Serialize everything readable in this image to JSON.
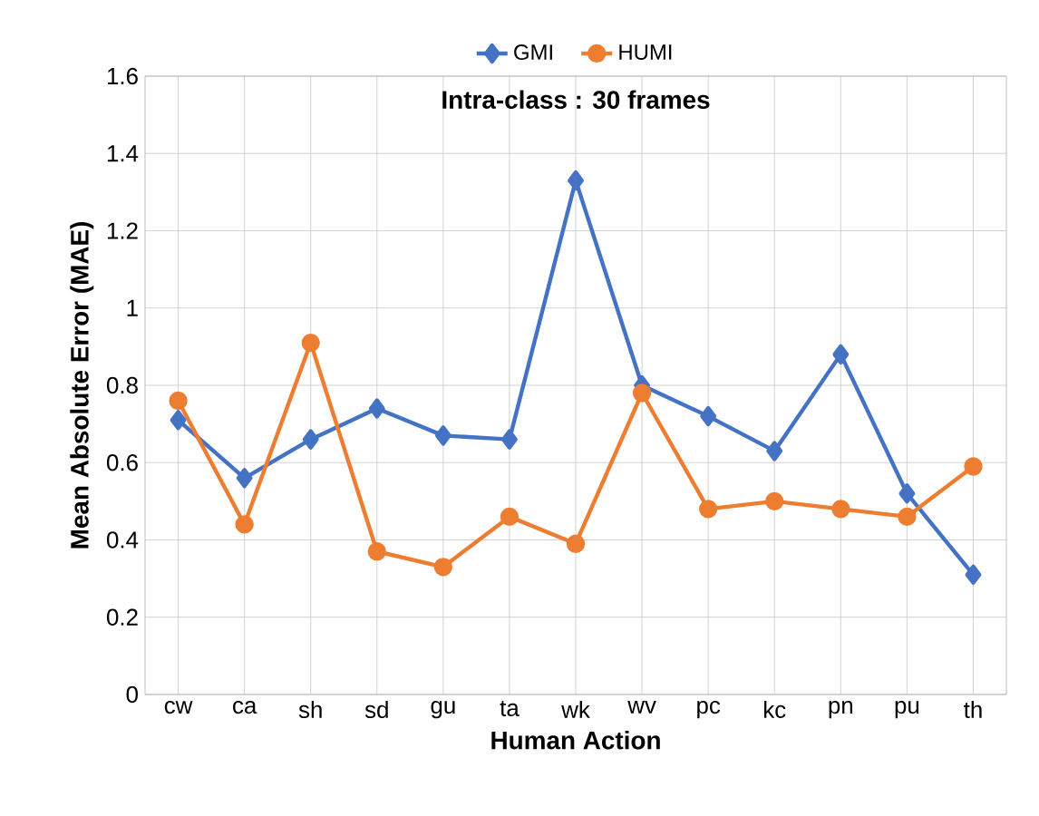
{
  "chart_data": {
    "type": "line",
    "title": "Intra-class : 30 frames",
    "xlabel": "Human Action",
    "ylabel": "Mean Absolute Error (MAE)",
    "categories": [
      "cw",
      "ca",
      "sh",
      "sd",
      "gu",
      "ta",
      "wk",
      "wv",
      "pc",
      "kc",
      "pn",
      "pu",
      "th"
    ],
    "series": [
      {
        "name": "GMI",
        "color": "#4472c4",
        "marker": "diamond",
        "values": [
          0.71,
          0.56,
          0.66,
          0.74,
          0.67,
          0.66,
          1.33,
          0.8,
          0.72,
          0.63,
          0.88,
          0.52,
          0.31
        ]
      },
      {
        "name": "HUMI",
        "color": "#ed7d31",
        "marker": "circle",
        "values": [
          0.76,
          0.44,
          0.91,
          0.37,
          0.33,
          0.46,
          0.39,
          0.78,
          0.48,
          0.5,
          0.48,
          0.46,
          0.59
        ]
      }
    ],
    "ylim": [
      0,
      1.6
    ],
    "yticks": [
      0,
      0.2,
      0.4,
      0.6,
      0.8,
      1,
      1.2,
      1.4,
      1.6
    ],
    "grid": true,
    "legend": "top",
    "line_style": "solid"
  }
}
